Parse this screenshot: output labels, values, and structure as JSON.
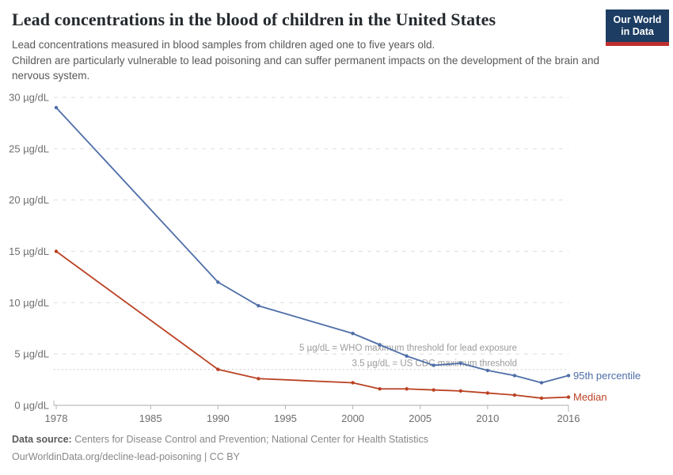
{
  "header": {
    "title": "Lead concentrations in the blood of children in the United States",
    "subtitle_line1": "Lead concentrations measured in blood samples from children aged one to five years old.",
    "subtitle_line2": "Children are particularly vulnerable to lead poisoning and can suffer permanent impacts on the development of the brain and nervous system."
  },
  "logo": {
    "line1": "Our World",
    "line2": "in Data"
  },
  "colors": {
    "series_blue": "#4e6ea8",
    "series_red": "#ba4223",
    "logo_navy": "#1d3d63",
    "logo_red": "#bf2e2e",
    "grid": "#dedede",
    "dotted_line": "#cccccc",
    "axis": "#a8a8a8",
    "tick": "#b3b3b3",
    "tick_label": "#6e6e6e",
    "annotation": "#9b9b9b"
  },
  "chart_data": {
    "type": "line",
    "title": "Lead concentrations in the blood of children in the United States",
    "unit": "µg/dL",
    "x": [
      1978,
      1990,
      1993,
      2000,
      2002,
      2004,
      2006,
      2008,
      2010,
      2012,
      2014,
      2016
    ],
    "series": [
      {
        "name": "95th percentile",
        "color": "#4e6ea8",
        "values": [
          29,
          12,
          9.7,
          7.0,
          5.9,
          4.8,
          3.9,
          4.1,
          3.4,
          2.9,
          2.2,
          2.9
        ]
      },
      {
        "name": "Median",
        "color": "#ba4223",
        "values": [
          15,
          3.5,
          2.6,
          2.2,
          1.6,
          1.6,
          1.5,
          1.4,
          1.2,
          1.0,
          0.7,
          0.8
        ]
      }
    ],
    "yticks": [
      0,
      5,
      10,
      15,
      20,
      25,
      30
    ],
    "xticks": [
      1978,
      1985,
      1990,
      1995,
      2000,
      2005,
      2010,
      2016
    ],
    "ylim": [
      0,
      30
    ],
    "xlim": [
      1978,
      2016
    ],
    "grid": true,
    "legend_position": "end-of-line",
    "annotations": [
      {
        "text": "5 µg/dL = WHO maximum threshold for lead exposure",
        "value": 5,
        "line": "none"
      },
      {
        "text": "3.5 µg/dL = US CDC maximum threshold",
        "value": 3.5,
        "line": "dotted"
      }
    ]
  },
  "footer": {
    "datasource_label": "Data source:",
    "datasource_text": " Centers for Disease Control and Prevention; National Center for Health Statistics",
    "link_text": "OurWorldinData.org/decline-lead-poisoning | CC BY"
  }
}
